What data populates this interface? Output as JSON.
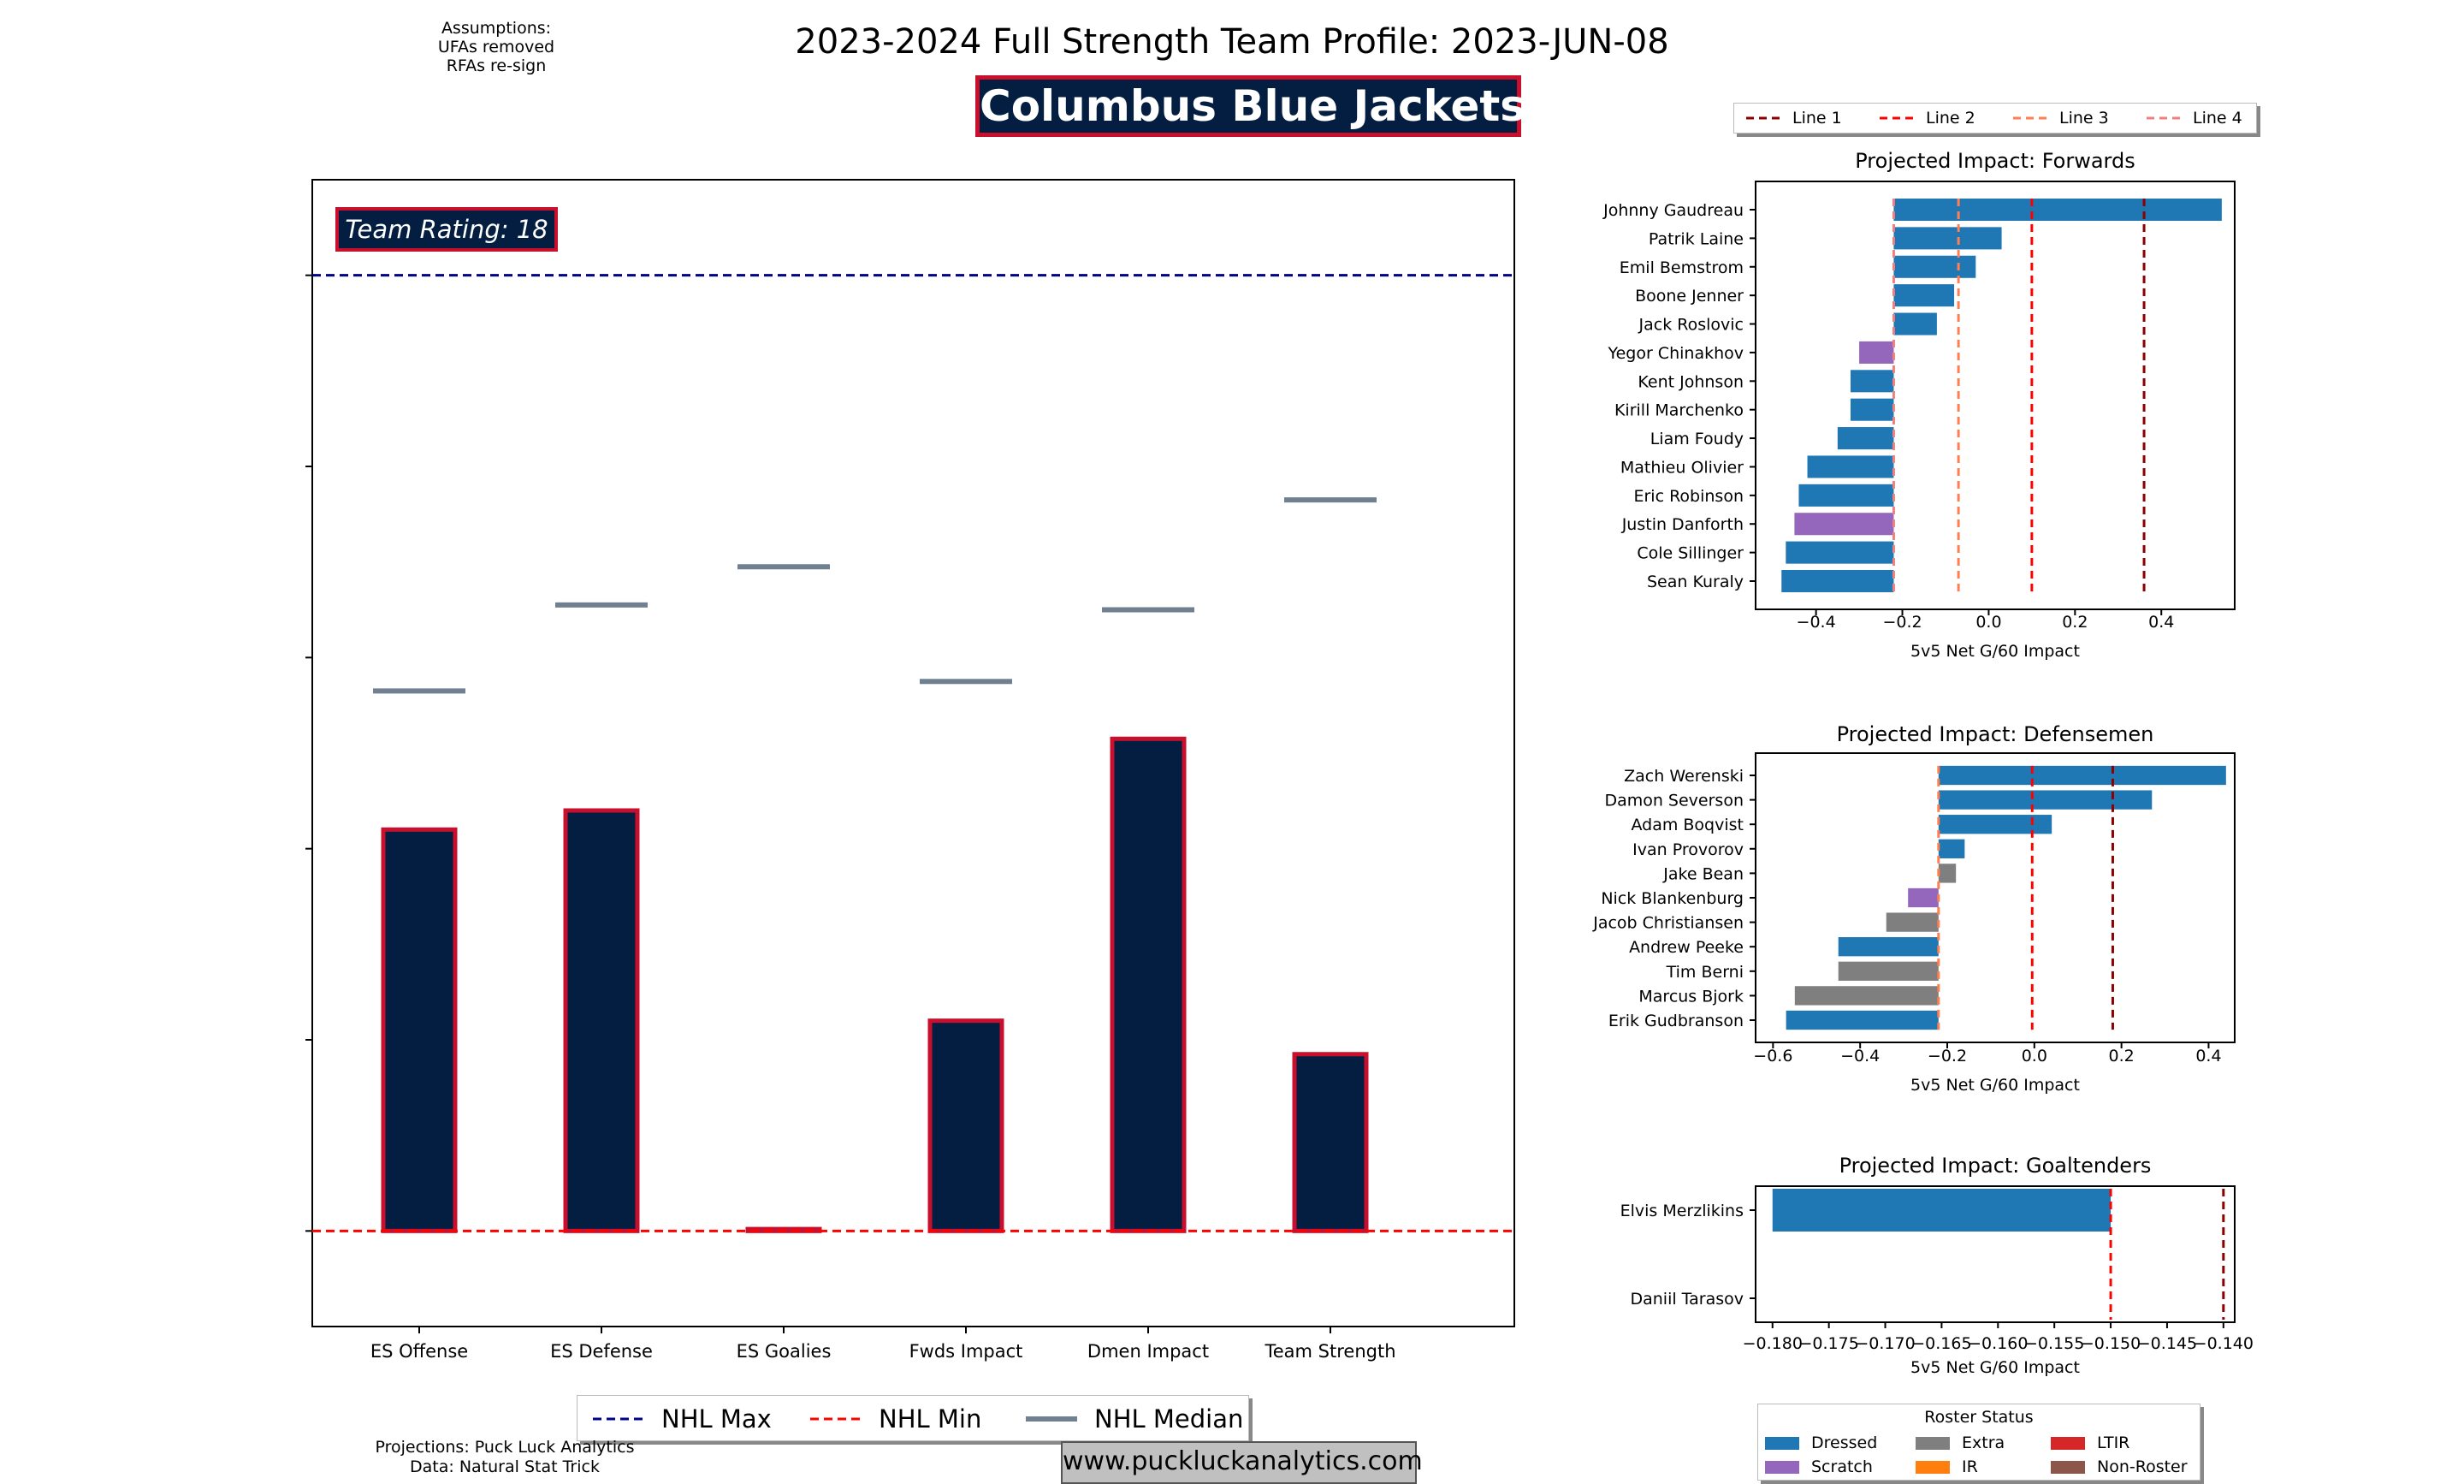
{
  "header": {
    "title": "2023-2024 Full Strength Team Profile: 2023-JUN-08",
    "team_name": "Columbus Blue Jackets",
    "assumptions": [
      "Assumptions:",
      "UFAs removed",
      "RFAs re-sign"
    ]
  },
  "team_rating_label": "Team Rating: 18",
  "colors": {
    "navy": "#041e42",
    "red": "#c8102e",
    "median": "#708090",
    "dressed": "#1f77b4",
    "scratch": "#9467bd",
    "extra": "#7f7f7f",
    "ir": "#ff7f0e",
    "ltir": "#d62728",
    "nonroster": "#8c564b",
    "line1": "#8b0000",
    "line2": "#ff0000",
    "line3": "#ff7f50",
    "line4": "#f08080"
  },
  "chart_data": [
    {
      "type": "bar",
      "title": "Team Profile Components",
      "categories": [
        "ES Offense",
        "ES Defense",
        "ES Goalies",
        "Fwds Impact",
        "Dmen Impact",
        "Team Strength"
      ],
      "values": [
        42,
        44,
        0.2,
        22,
        51.5,
        18.5
      ],
      "median": [
        56.5,
        65.5,
        69.5,
        57.5,
        65,
        76.5
      ],
      "nhl_max": 100,
      "nhl_min": 0,
      "ylim": [
        -10,
        110
      ],
      "legend": [
        "NHL Max",
        "NHL Min",
        "NHL Median"
      ]
    },
    {
      "type": "bar",
      "orientation": "horizontal",
      "title": "Projected Impact: Forwards",
      "xlabel": "5v5 Net G/60 Impact",
      "baseline": -0.22,
      "xlim": [
        -0.54,
        0.57
      ],
      "xticks": [
        -0.4,
        -0.2,
        0.0,
        0.2,
        0.4
      ],
      "tick_labels": [
        "−0.4",
        "−0.2",
        "0.0",
        "0.2",
        "0.4"
      ],
      "players": [
        "Johnny Gaudreau",
        "Patrik Laine",
        "Emil Bemstrom",
        "Boone Jenner",
        "Jack Roslovic",
        "Yegor Chinakhov",
        "Kent Johnson",
        "Kirill Marchenko",
        "Liam Foudy",
        "Mathieu Olivier",
        "Eric Robinson",
        "Justin Danforth",
        "Cole Sillinger",
        "Sean Kuraly"
      ],
      "values": [
        0.54,
        0.03,
        -0.03,
        -0.08,
        -0.12,
        -0.3,
        -0.32,
        -0.32,
        -0.35,
        -0.42,
        -0.44,
        -0.45,
        -0.47,
        -0.48
      ],
      "status": [
        "dressed",
        "dressed",
        "dressed",
        "dressed",
        "dressed",
        "scratch",
        "dressed",
        "dressed",
        "dressed",
        "dressed",
        "dressed",
        "scratch",
        "dressed",
        "dressed"
      ],
      "lines": [
        {
          "name": "Line 1",
          "x": 0.36
        },
        {
          "name": "Line 2",
          "x": 0.1
        },
        {
          "name": "Line 3",
          "x": -0.07
        },
        {
          "name": "Line 4",
          "x": -0.22
        }
      ]
    },
    {
      "type": "bar",
      "orientation": "horizontal",
      "title": "Projected Impact: Defensemen",
      "xlabel": "5v5 Net G/60 Impact",
      "baseline": -0.22,
      "xlim": [
        -0.64,
        0.46
      ],
      "xticks": [
        -0.6,
        -0.4,
        -0.2,
        0.0,
        0.2,
        0.4
      ],
      "tick_labels": [
        "−0.6",
        "−0.4",
        "−0.2",
        "0.0",
        "0.2",
        "0.4"
      ],
      "players": [
        "Zach Werenski",
        "Damon Severson",
        "Adam Boqvist",
        "Ivan Provorov",
        "Jake Bean",
        "Nick Blankenburg",
        "Jacob Christiansen",
        "Andrew Peeke",
        "Tim Berni",
        "Marcus Bjork",
        "Erik Gudbranson"
      ],
      "values": [
        0.44,
        0.27,
        0.04,
        -0.16,
        -0.18,
        -0.29,
        -0.34,
        -0.45,
        -0.45,
        -0.55,
        -0.57
      ],
      "status": [
        "dressed",
        "dressed",
        "dressed",
        "dressed",
        "extra",
        "scratch",
        "extra",
        "dressed",
        "extra",
        "extra",
        "dressed"
      ],
      "lines": [
        {
          "name": "Line 1",
          "x": 0.18
        },
        {
          "name": "Line 2",
          "x": -0.005
        },
        {
          "name": "Line 3",
          "x": -0.22
        }
      ]
    },
    {
      "type": "bar",
      "orientation": "horizontal",
      "title": "Projected Impact: Goaltenders",
      "xlabel": "5v5 Net G/60 Impact",
      "baseline": -0.15,
      "xlim": [
        -0.1815,
        -0.139
      ],
      "xticks": [
        -0.18,
        -0.175,
        -0.17,
        -0.165,
        -0.16,
        -0.155,
        -0.15,
        -0.145,
        -0.14
      ],
      "tick_labels": [
        "−0.180",
        "−0.175",
        "−0.170",
        "−0.165",
        "−0.160",
        "−0.155",
        "−0.150",
        "−0.145",
        "−0.140"
      ],
      "players": [
        "Elvis Merzlikins",
        "Daniil Tarasov"
      ],
      "values": [
        -0.18,
        -0.15
      ],
      "status": [
        "dressed",
        "dressed"
      ],
      "lines": [
        {
          "name": "Line 1",
          "x": -0.14
        },
        {
          "name": "Line 2",
          "x": -0.15
        }
      ]
    }
  ],
  "line_legend": [
    "Line 1",
    "Line 2",
    "Line 3",
    "Line 4"
  ],
  "roster_status": {
    "title": "Roster Status",
    "items": [
      "Dressed",
      "Extra",
      "LTIR",
      "Scratch",
      "IR",
      "Non-Roster"
    ]
  },
  "footer": {
    "credits": [
      "Projections: Puck Luck Analytics",
      "Data: Natural Stat Trick"
    ],
    "url": "www.puckluckanalytics.com"
  }
}
